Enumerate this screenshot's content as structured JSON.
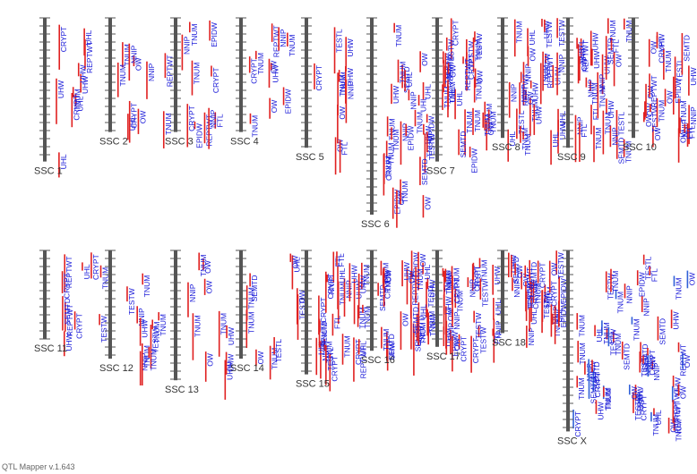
{
  "app": {
    "version_label": "QTL Mapper v.1.643"
  },
  "colors": {
    "chromosome": "#555555",
    "tick": "#555555",
    "qtl_bar": "#e02020",
    "qtl_bar_alt": "#3060d8",
    "qtl_text": "#1a1ad8",
    "label": "#333333",
    "background": "#ffffff"
  },
  "chromosomes": [
    {
      "label": "SSC 1",
      "row": 1,
      "length": 0.73
    },
    {
      "label": "SSC 2",
      "row": 1,
      "length": 0.58
    },
    {
      "label": "SSC 3",
      "row": 1,
      "length": 0.58
    },
    {
      "label": "SSC 4",
      "row": 1,
      "length": 0.58
    },
    {
      "label": "SSC 5",
      "row": 1,
      "length": 0.66
    },
    {
      "label": "SSC 6",
      "row": 1,
      "length": 1.0
    },
    {
      "label": "SSC 7",
      "row": 1,
      "length": 0.73
    },
    {
      "label": "SSC 8",
      "row": 1,
      "length": 0.61
    },
    {
      "label": "SSC 9",
      "row": 1,
      "length": 0.66
    },
    {
      "label": "SSC 10",
      "row": 1,
      "length": 0.61
    },
    {
      "label": "SSC 11",
      "row": 2,
      "length": 0.45
    },
    {
      "label": "SSC 12",
      "row": 2,
      "length": 0.55
    },
    {
      "label": "SSC 13",
      "row": 2,
      "length": 0.66
    },
    {
      "label": "SSC 14",
      "row": 2,
      "length": 0.55
    },
    {
      "label": "SSC 15",
      "row": 2,
      "length": 0.63
    },
    {
      "label": "SSC 16",
      "row": 2,
      "length": 0.51
    },
    {
      "label": "SSC 17",
      "row": 2,
      "length": 0.49
    },
    {
      "label": "SSC 18",
      "row": 2,
      "length": 0.42
    },
    {
      "label": "SSC X",
      "row": 2,
      "length": 0.92
    }
  ],
  "trait_labels": [
    "TNUM",
    "TNUM",
    "NNIP",
    "UHW",
    "UHL",
    "CRYPT",
    "TESTW",
    "EPIDW",
    "OW",
    "REPTWT",
    "SEMTD",
    "TESTL",
    "TNUM",
    "NNIP",
    "TNUM",
    "UHW",
    "FTL",
    "TNUM",
    "OW",
    "CRYPT"
  ],
  "chart_data": {
    "type": "table",
    "series": [
      {
        "name": "chromosomes",
        "values": [
          "SSC 1",
          "SSC 2",
          "SSC 3",
          "SSC 4",
          "SSC 5",
          "SSC 6",
          "SSC 7",
          "SSC 8",
          "SSC 9",
          "SSC 10",
          "SSC 11",
          "SSC 12",
          "SSC 13",
          "SSC 14",
          "SSC 15",
          "SSC 16",
          "SSC 17",
          "SSC 18",
          "SSC X"
        ]
      }
    ],
    "traits": [
      "TNUM",
      "NNIP",
      "UHW",
      "UHL",
      "CRYPT",
      "TESTW",
      "TESTL",
      "EPIDW",
      "OW",
      "REPTWT",
      "SEMTD",
      "FTL"
    ]
  }
}
